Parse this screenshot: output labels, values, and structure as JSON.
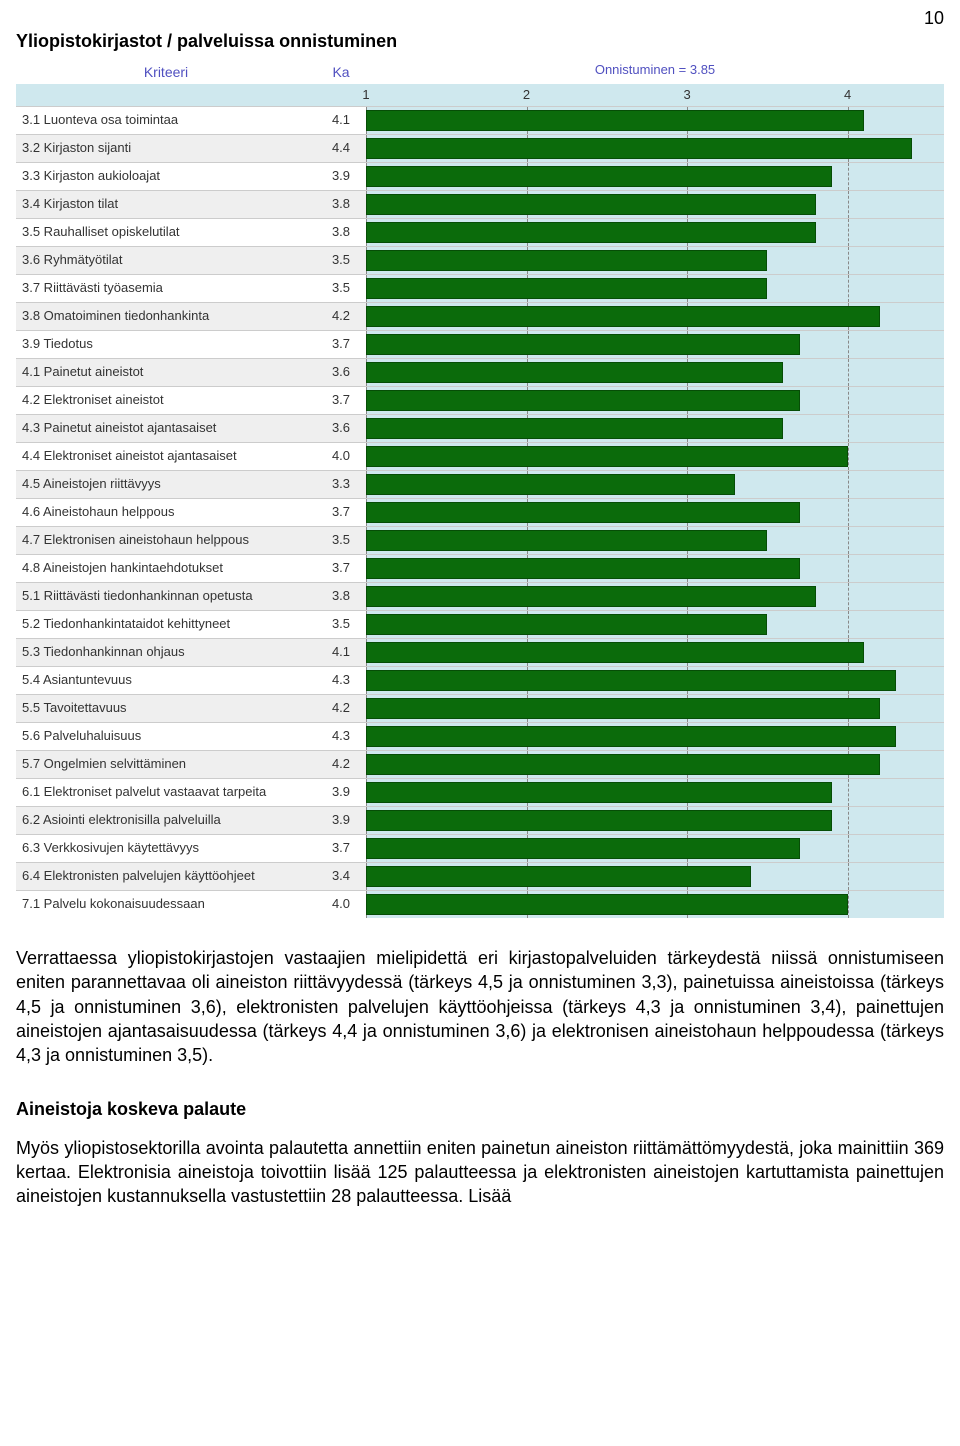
{
  "page_number": "10",
  "section_title": "Yliopistokirjastot / palveluissa onnistuminen",
  "chart": {
    "header_kriteeri": "Kriteeri",
    "header_ka": "Ka",
    "header_onnistuminen": "Onnistuminen = 3.85",
    "axis_min": 1,
    "axis_max": 4.6,
    "axis_ticks": [
      1,
      2,
      3,
      4
    ],
    "bar_color": "#0b6b0b",
    "bar_border": "#064d06",
    "chart_bg": "#cfe8ee",
    "rows": [
      {
        "label": "3.1 Luonteva osa toimintaa",
        "ka": "4.1",
        "value": 4.1
      },
      {
        "label": "3.2 Kirjaston sijanti",
        "ka": "4.4",
        "value": 4.4
      },
      {
        "label": "3.3 Kirjaston aukioloajat",
        "ka": "3.9",
        "value": 3.9
      },
      {
        "label": "3.4 Kirjaston tilat",
        "ka": "3.8",
        "value": 3.8
      },
      {
        "label": "3.5 Rauhalliset opiskelutilat",
        "ka": "3.8",
        "value": 3.8
      },
      {
        "label": "3.6 Ryhmätyötilat",
        "ka": "3.5",
        "value": 3.5
      },
      {
        "label": "3.7 Riittävästi työasemia",
        "ka": "3.5",
        "value": 3.5
      },
      {
        "label": "3.8 Omatoiminen tiedonhankinta",
        "ka": "4.2",
        "value": 4.2
      },
      {
        "label": "3.9 Tiedotus",
        "ka": "3.7",
        "value": 3.7
      },
      {
        "label": "4.1 Painetut aineistot",
        "ka": "3.6",
        "value": 3.6
      },
      {
        "label": "4.2 Elektroniset aineistot",
        "ka": "3.7",
        "value": 3.7
      },
      {
        "label": "4.3 Painetut aineistot ajantasaiset",
        "ka": "3.6",
        "value": 3.6
      },
      {
        "label": "4.4 Elektroniset aineistot ajantasaiset",
        "ka": "4.0",
        "value": 4.0
      },
      {
        "label": "4.5 Aineistojen riittävyys",
        "ka": "3.3",
        "value": 3.3
      },
      {
        "label": "4.6 Aineistohaun helppous",
        "ka": "3.7",
        "value": 3.7
      },
      {
        "label": "4.7 Elektronisen aineistohaun helppous",
        "ka": "3.5",
        "value": 3.5
      },
      {
        "label": "4.8 Aineistojen hankintaehdotukset",
        "ka": "3.7",
        "value": 3.7
      },
      {
        "label": "5.1 Riittävästi tiedonhankinnan opetusta",
        "ka": "3.8",
        "value": 3.8
      },
      {
        "label": "5.2 Tiedonhankintataidot kehittyneet",
        "ka": "3.5",
        "value": 3.5
      },
      {
        "label": "5.3 Tiedonhankinnan ohjaus",
        "ka": "4.1",
        "value": 4.1
      },
      {
        "label": "5.4 Asiantuntevuus",
        "ka": "4.3",
        "value": 4.3
      },
      {
        "label": "5.5 Tavoitettavuus",
        "ka": "4.2",
        "value": 4.2
      },
      {
        "label": "5.6 Palveluhaluisuus",
        "ka": "4.3",
        "value": 4.3
      },
      {
        "label": "5.7 Ongelmien selvittäminen",
        "ka": "4.2",
        "value": 4.2
      },
      {
        "label": "6.1 Elektroniset palvelut vastaavat tarpeita",
        "ka": "3.9",
        "value": 3.9
      },
      {
        "label": "6.2 Asiointi elektronisilla palveluilla",
        "ka": "3.9",
        "value": 3.9
      },
      {
        "label": "6.3 Verkkosivujen käytettävyys",
        "ka": "3.7",
        "value": 3.7
      },
      {
        "label": "6.4 Elektronisten palvelujen käyttöohjeet",
        "ka": "3.4",
        "value": 3.4
      },
      {
        "label": "7.1 Palvelu kokonaisuudessaan",
        "ka": "4.0",
        "value": 4.0
      }
    ]
  },
  "body_para1": "Verrattaessa yliopistokirjastojen vastaajien mielipidettä eri kirjastopalveluiden tärkeydestä niissä onnistumiseen eniten parannettavaa oli aineiston riittävyydessä (tärkeys 4,5 ja onnistuminen 3,3), painetuissa aineistoissa (tärkeys 4,5 ja onnistuminen 3,6), elektronisten palvelujen käyttöohjeissa (tärkeys 4,3 ja onnistuminen 3,4), painettujen aineistojen ajantasaisuudessa (tärkeys 4,4 ja onnistuminen 3,6) ja elektronisen aineistohaun helppoudessa (tärkeys 4,3 ja onnistuminen 3,5).",
  "subhead": "Aineistoja koskeva palaute",
  "body_para2": "Myös yliopistosektorilla avointa palautetta annettiin eniten painetun aineiston riittämättömyydestä, joka mainittiin 369 kertaa. Elektronisia aineistoja toivottiin lisää 125 palautteessa ja elektronisten aineistojen kartuttamista painettujen aineistojen kustannuksella vastustettiin 28 palautteessa. Lisää"
}
